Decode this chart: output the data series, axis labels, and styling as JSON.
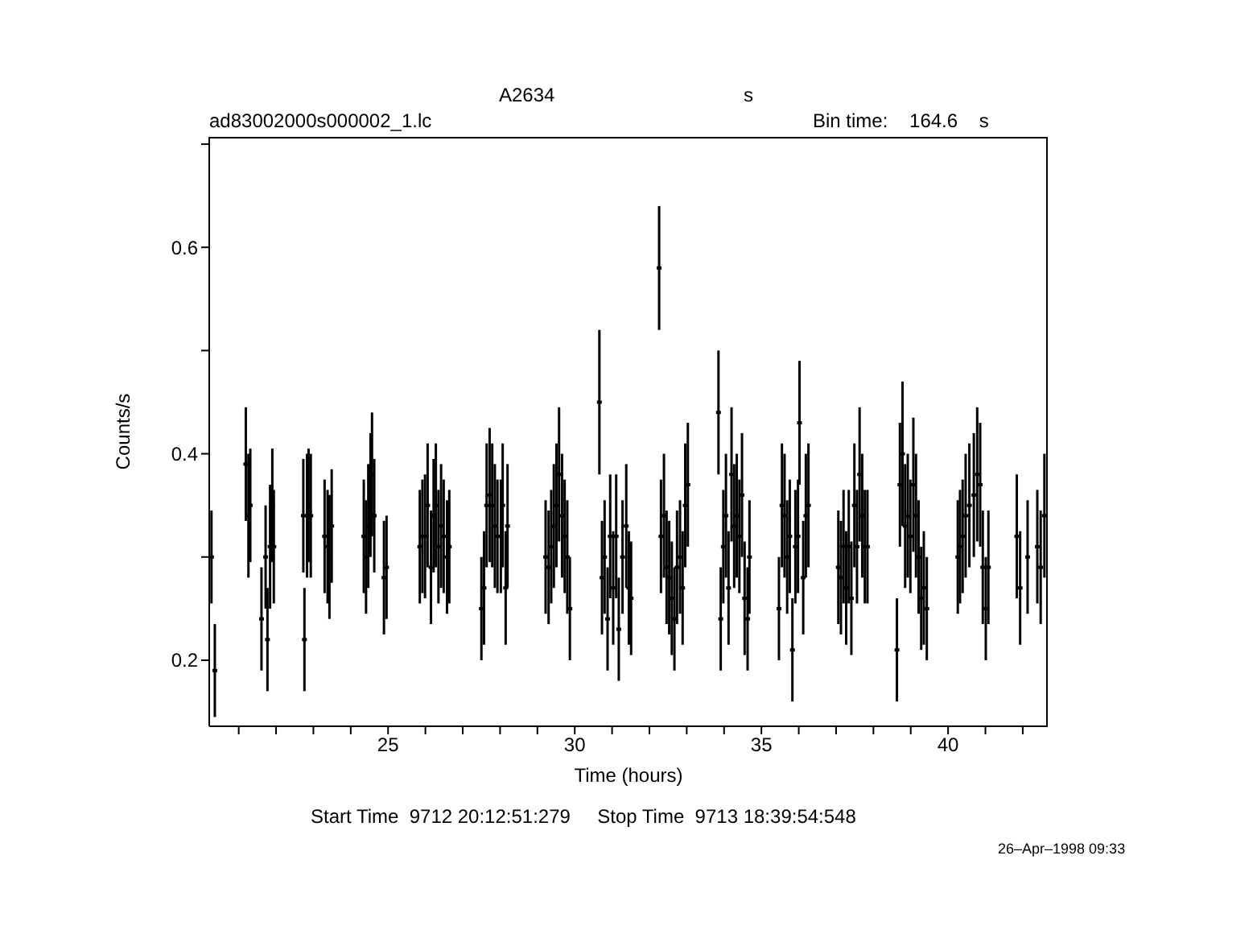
{
  "chart_data": {
    "type": "scatter",
    "title": "A2634",
    "subtitle": "ad83002000s000002_1.lc",
    "xlabel": "Time (hours)",
    "ylabel": "Counts/s",
    "annotations": [
      "s",
      "Bin time:    164.6    s",
      "Start Time  9712 20:12:51:279     Stop Time  9713 18:39:54:548",
      "26–Apr–1998 09:33"
    ],
    "color": "#000000",
    "xlim": [
      20.21,
      42.67
    ],
    "xticks": [
      {
        "value": 21,
        "label": null
      },
      {
        "value": 22,
        "label": null
      },
      {
        "value": 23,
        "label": null
      },
      {
        "value": 24,
        "label": null
      },
      25,
      {
        "value": 26,
        "label": null
      },
      {
        "value": 27,
        "label": null
      },
      {
        "value": 28,
        "label": null
      },
      {
        "value": 29,
        "label": null
      },
      30,
      {
        "value": 31,
        "label": null
      },
      {
        "value": 32,
        "label": null
      },
      {
        "value": 33,
        "label": null
      },
      {
        "value": 34,
        "label": null
      },
      35,
      {
        "value": 36,
        "label": null
      },
      {
        "value": 37,
        "label": null
      },
      {
        "value": 38,
        "label": null
      },
      {
        "value": 39,
        "label": null
      },
      40,
      {
        "value": 41,
        "label": null
      },
      {
        "value": 42,
        "label": null
      }
    ],
    "ylim": [
      0.136,
      0.707
    ],
    "yticks": [
      0.2,
      {
        "value": 0.3,
        "label": null
      },
      0.4,
      {
        "value": 0.5,
        "label": null
      },
      0.6,
      {
        "value": 0.7,
        "label": null
      }
    ],
    "x": [
      20.27,
      20.36,
      21.19,
      21.26,
      21.31,
      21.61,
      21.72,
      21.77,
      21.84,
      21.9,
      21.94,
      22.73,
      22.76,
      22.83,
      22.87,
      22.93,
      23.3,
      23.38,
      23.43,
      23.49,
      24.35,
      24.41,
      24.47,
      24.53,
      24.57,
      24.63,
      24.89,
      24.96,
      25.85,
      25.92,
      25.99,
      26.06,
      26.15,
      26.22,
      26.28,
      26.35,
      26.42,
      26.49,
      26.58,
      26.64,
      27.5,
      27.57,
      27.64,
      27.72,
      27.79,
      27.86,
      27.93,
      28.02,
      28.07,
      28.15,
      28.2,
      29.22,
      29.3,
      29.37,
      29.44,
      29.51,
      29.58,
      29.66,
      29.73,
      29.8,
      29.87,
      30.66,
      30.73,
      30.8,
      30.88,
      30.95,
      31.03,
      31.11,
      31.18,
      31.28,
      31.38,
      31.45,
      31.51,
      32.26,
      32.31,
      32.39,
      32.46,
      32.53,
      32.6,
      32.67,
      32.74,
      32.82,
      32.89,
      32.96,
      33.03,
      33.85,
      33.91,
      33.98,
      34.05,
      34.12,
      34.2,
      34.27,
      34.34,
      34.41,
      34.48,
      34.55,
      34.63,
      34.68,
      35.47,
      35.55,
      35.62,
      35.69,
      35.76,
      35.83,
      35.91,
      35.98,
      36.02,
      36.12,
      36.19,
      36.26,
      37.06,
      37.13,
      37.2,
      37.27,
      37.34,
      37.41,
      37.49,
      37.56,
      37.63,
      37.7,
      37.77,
      37.84,
      38.63,
      38.71,
      38.78,
      38.85,
      38.92,
      38.99,
      39.07,
      39.14,
      39.21,
      39.28,
      39.35,
      39.43,
      40.26,
      40.32,
      40.39,
      40.47,
      40.57,
      40.69,
      40.78,
      40.86,
      40.93,
      41.01,
      41.08,
      41.84,
      41.93,
      42.13,
      42.39,
      42.48,
      42.58
    ],
    "values": [
      0.3,
      0.19,
      0.39,
      0.34,
      0.35,
      0.24,
      0.3,
      0.22,
      0.31,
      0.35,
      0.31,
      0.34,
      0.22,
      0.34,
      0.35,
      0.34,
      0.32,
      0.31,
      0.3,
      0.33,
      0.32,
      0.3,
      0.33,
      0.36,
      0.38,
      0.34,
      0.28,
      0.29,
      0.31,
      0.32,
      0.32,
      0.35,
      0.29,
      0.34,
      0.35,
      0.31,
      0.33,
      0.32,
      0.3,
      0.31,
      0.25,
      0.27,
      0.35,
      0.36,
      0.35,
      0.33,
      0.32,
      0.32,
      0.35,
      0.27,
      0.33,
      0.3,
      0.29,
      0.31,
      0.33,
      0.35,
      0.38,
      0.34,
      0.32,
      0.3,
      0.25,
      0.45,
      0.28,
      0.3,
      0.24,
      0.32,
      0.27,
      0.32,
      0.23,
      0.3,
      0.33,
      0.27,
      0.26,
      0.58,
      0.32,
      0.34,
      0.29,
      0.28,
      0.26,
      0.24,
      0.29,
      0.3,
      0.27,
      0.35,
      0.37,
      0.44,
      0.24,
      0.31,
      0.34,
      0.27,
      0.38,
      0.33,
      0.34,
      0.32,
      0.36,
      0.26,
      0.24,
      0.3,
      0.25,
      0.35,
      0.34,
      0.3,
      0.32,
      0.21,
      0.31,
      0.32,
      0.43,
      0.28,
      0.34,
      0.35,
      0.29,
      0.28,
      0.31,
      0.27,
      0.31,
      0.26,
      0.35,
      0.31,
      0.38,
      0.34,
      0.31,
      0.31,
      0.21,
      0.37,
      0.4,
      0.33,
      0.34,
      0.32,
      0.37,
      0.34,
      0.3,
      0.26,
      0.27,
      0.25,
      0.3,
      0.31,
      0.32,
      0.34,
      0.35,
      0.36,
      0.38,
      0.37,
      0.29,
      0.25,
      0.29,
      0.32,
      0.27,
      0.3,
      0.31,
      0.29,
      0.34
    ],
    "errors": [
      0.045,
      0.045,
      0.055,
      0.06,
      0.055,
      0.05,
      0.05,
      0.05,
      0.06,
      0.055,
      0.055,
      0.055,
      0.05,
      0.06,
      0.055,
      0.06,
      0.055,
      0.055,
      0.06,
      0.055,
      0.055,
      0.055,
      0.06,
      0.06,
      0.06,
      0.055,
      0.055,
      0.05,
      0.055,
      0.055,
      0.06,
      0.06,
      0.055,
      0.055,
      0.06,
      0.055,
      0.06,
      0.055,
      0.055,
      0.055,
      0.05,
      0.055,
      0.06,
      0.065,
      0.06,
      0.06,
      0.055,
      0.055,
      0.06,
      0.055,
      0.06,
      0.055,
      0.055,
      0.055,
      0.06,
      0.06,
      0.065,
      0.06,
      0.055,
      0.055,
      0.05,
      0.07,
      0.055,
      0.055,
      0.05,
      0.06,
      0.055,
      0.06,
      0.05,
      0.055,
      0.06,
      0.055,
      0.055,
      0.06,
      0.055,
      0.06,
      0.055,
      0.055,
      0.055,
      0.05,
      0.055,
      0.055,
      0.055,
      0.06,
      0.06,
      0.06,
      0.05,
      0.055,
      0.06,
      0.055,
      0.065,
      0.06,
      0.06,
      0.055,
      0.06,
      0.055,
      0.05,
      0.055,
      0.05,
      0.06,
      0.06,
      0.055,
      0.055,
      0.05,
      0.055,
      0.055,
      0.06,
      0.055,
      0.06,
      0.06,
      0.055,
      0.055,
      0.055,
      0.055,
      0.055,
      0.055,
      0.06,
      0.055,
      0.065,
      0.06,
      0.055,
      0.055,
      0.05,
      0.06,
      0.07,
      0.06,
      0.06,
      0.055,
      0.065,
      0.06,
      0.055,
      0.05,
      0.055,
      0.05,
      0.055,
      0.055,
      0.055,
      0.06,
      0.06,
      0.06,
      0.065,
      0.06,
      0.055,
      0.05,
      0.055,
      0.06,
      0.055,
      0.055,
      0.055,
      0.055,
      0.06
    ],
    "xerrors": [
      0.023,
      0.023,
      0.023,
      0.023,
      0.023,
      0.023,
      0.023,
      0.023,
      0.023,
      0.023,
      0.023,
      0.023,
      0.023,
      0.023,
      0.023,
      0.023,
      0.023,
      0.023,
      0.023,
      0.023,
      0.023,
      0.023,
      0.023,
      0.023,
      0.023,
      0.023,
      0.023,
      0.023,
      0.023,
      0.023,
      0.023,
      0.023,
      0.023,
      0.023,
      0.023,
      0.023,
      0.023,
      0.023,
      0.023,
      0.023,
      0.023,
      0.023,
      0.023,
      0.023,
      0.023,
      0.023,
      0.023,
      0.023,
      0.023,
      0.023,
      0.023,
      0.023,
      0.023,
      0.023,
      0.023,
      0.023,
      0.023,
      0.023,
      0.023,
      0.023,
      0.023,
      0.023,
      0.023,
      0.023,
      0.023,
      0.023,
      0.023,
      0.023,
      0.023,
      0.023,
      0.023,
      0.023,
      0.023,
      0.023,
      0.023,
      0.023,
      0.023,
      0.023,
      0.023,
      0.023,
      0.023,
      0.023,
      0.023,
      0.023,
      0.023,
      0.023,
      0.023,
      0.023,
      0.023,
      0.023,
      0.023,
      0.023,
      0.023,
      0.023,
      0.023,
      0.023,
      0.023,
      0.023,
      0.023,
      0.023,
      0.023,
      0.023,
      0.023,
      0.023,
      0.023,
      0.023,
      0.023,
      0.023,
      0.023,
      0.023,
      0.023,
      0.023,
      0.023,
      0.023,
      0.023,
      0.023,
      0.023,
      0.023,
      0.023,
      0.023,
      0.023,
      0.023,
      0.023,
      0.023,
      0.023,
      0.023,
      0.023,
      0.023,
      0.023,
      0.023,
      0.023,
      0.023,
      0.023,
      0.023,
      0.023,
      0.023,
      0.023,
      0.023,
      0.023,
      0.023,
      0.023,
      0.023,
      0.023,
      0.023,
      0.023,
      0.023,
      0.023,
      0.023,
      0.023,
      0.023,
      0.023
    ]
  }
}
